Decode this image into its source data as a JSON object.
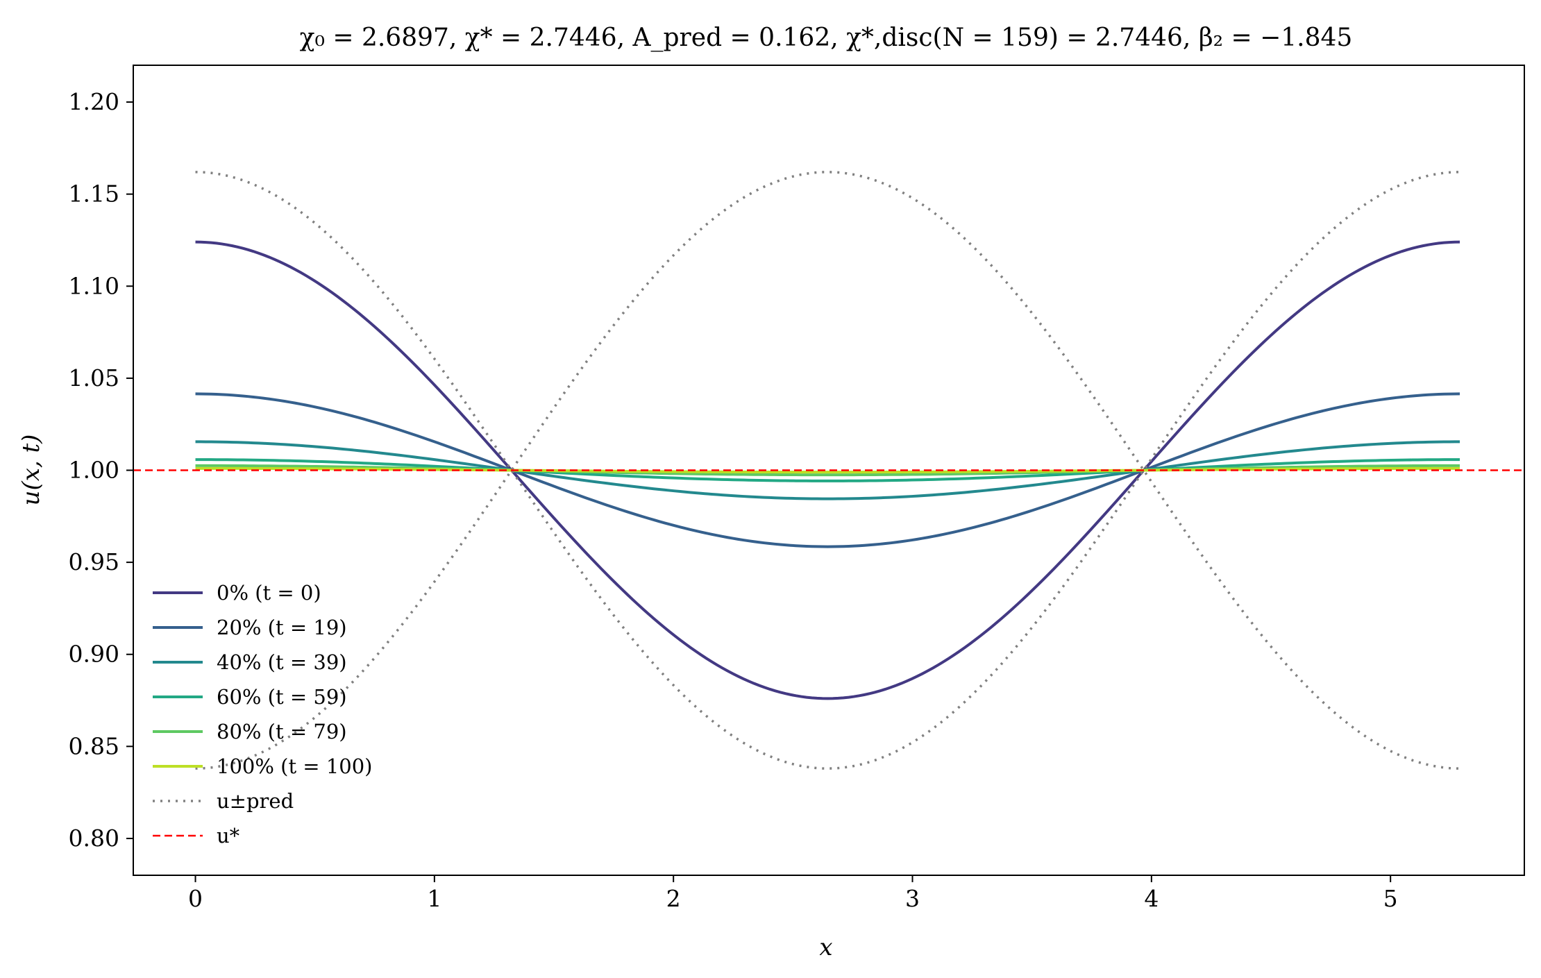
{
  "chart_data": {
    "type": "line",
    "title": "χ₀ = 2.6897,  χ* = 2.7446,  A_pred = 0.162,  χ*,disc(N = 159) = 2.7446,  β₂ = −1.845",
    "xlabel": "x",
    "ylabel": "u(x, t)",
    "xlim": [
      -0.26,
      5.56
    ],
    "ylim": [
      0.78,
      1.22
    ],
    "xticks": [
      "0",
      "1",
      "2",
      "3",
      "4",
      "5"
    ],
    "yticks": [
      "0.80",
      "0.85",
      "0.90",
      "0.95",
      "1.00",
      "1.05",
      "1.10",
      "1.15",
      "1.20"
    ],
    "x_max": 5.29,
    "wavelength": 5.29,
    "grid": false,
    "legend_position": "lower-left",
    "series": [
      {
        "name": "0% (t = 0)",
        "amplitude": 0.124,
        "color": "#433983",
        "style": "solid",
        "width": 4
      },
      {
        "name": "20% (t = 19)",
        "amplitude": 0.0415,
        "color": "#35608d",
        "style": "solid",
        "width": 4
      },
      {
        "name": "40% (t = 39)",
        "amplitude": 0.0155,
        "color": "#23898e",
        "style": "solid",
        "width": 4
      },
      {
        "name": "60% (t = 59)",
        "amplitude": 0.0058,
        "color": "#22a884",
        "style": "solid",
        "width": 4
      },
      {
        "name": "80% (t = 79)",
        "amplitude": 0.0025,
        "color": "#5ec962",
        "style": "solid",
        "width": 4
      },
      {
        "name": "100% (t = 100)",
        "amplitude": 0.001,
        "color": "#bddf26",
        "style": "solid",
        "width": 4
      },
      {
        "name": "u±pred",
        "amplitude": 0.162,
        "mirror": true,
        "color": "#808080",
        "style": "dotted",
        "width": 3.5
      },
      {
        "name": "u*",
        "constant": 1.0,
        "color": "#ff0000",
        "style": "dashed",
        "width": 2.5
      }
    ]
  }
}
